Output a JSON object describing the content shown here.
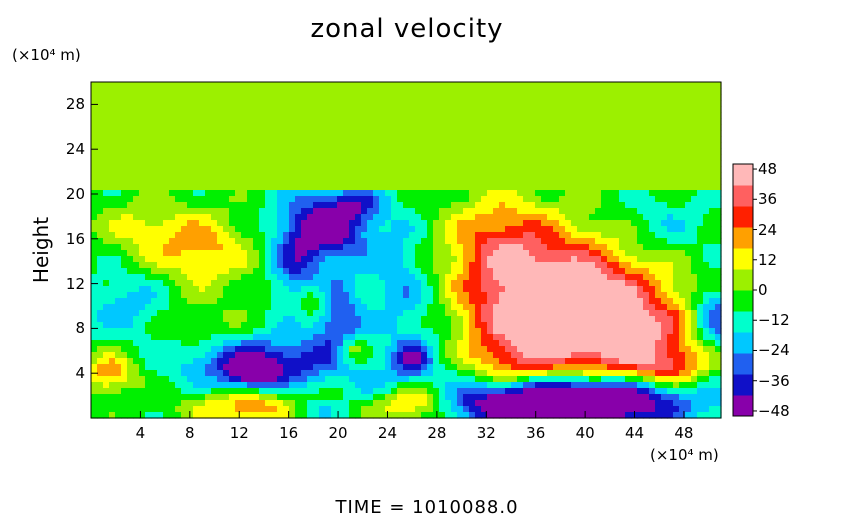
{
  "chart_data": {
    "type": "heatmap",
    "title": "zonal velocity",
    "ylabel": "Height",
    "xlabel": "",
    "x_unit_label": "(×10⁴ m)",
    "y_unit_label": "(×10⁴ m)",
    "x_ticks": [
      "4",
      "8",
      "12",
      "16",
      "20",
      "24",
      "28",
      "32",
      "36",
      "40",
      "44",
      "48"
    ],
    "y_ticks": [
      "4",
      "8",
      "12",
      "16",
      "20",
      "24",
      "28"
    ],
    "xlim": [
      0,
      51
    ],
    "ylim": [
      0,
      30
    ],
    "colorbar_ticks": [
      "48",
      "36",
      "24",
      "12",
      "0",
      "−12",
      "−24",
      "−36",
      "−48"
    ],
    "colorbar_range": [
      -50,
      50
    ],
    "colorbar_colors": [
      "#8800aa",
      "#1010c8",
      "#2060f0",
      "#00c8ff",
      "#00ffcc",
      "#00f000",
      "#9cf000",
      "#ffff00",
      "#ffa000",
      "#ff2000",
      "#ff6060",
      "#ffb8b8"
    ],
    "background_value": 0,
    "features": [
      {
        "x": 38,
        "y": 10,
        "sx": 5.5,
        "sy": 4.2,
        "value": 70
      },
      {
        "x": 44,
        "y": 7,
        "sx": 3.5,
        "sy": 2.5,
        "value": 30
      },
      {
        "x": 47,
        "y": 4.5,
        "sx": 2,
        "sy": 1.2,
        "value": 25
      },
      {
        "x": 33,
        "y": 16,
        "sx": 3,
        "sy": 3,
        "value": 25
      },
      {
        "x": 34,
        "y": 4,
        "sx": 2.5,
        "sy": 2.5,
        "value": 18
      },
      {
        "x": 38,
        "y": 1.5,
        "sx": 6.5,
        "sy": 1.5,
        "value": -85
      },
      {
        "x": 9,
        "y": 15,
        "sx": 2.8,
        "sy": 2.3,
        "value": 26
      },
      {
        "x": 4,
        "y": 17,
        "sx": 2.5,
        "sy": 1.8,
        "value": 15
      },
      {
        "x": 19,
        "y": 17,
        "sx": 2.5,
        "sy": 2.2,
        "value": -45
      },
      {
        "x": 21.5,
        "y": 19,
        "sx": 1.5,
        "sy": 1,
        "value": -20
      },
      {
        "x": 20,
        "y": 9,
        "sx": 1.4,
        "sy": 2.4,
        "value": -30
      },
      {
        "x": 25,
        "y": 12,
        "sx": 1.6,
        "sy": 4,
        "value": -18
      },
      {
        "x": 16.5,
        "y": 13,
        "sx": 1.3,
        "sy": 2.5,
        "value": -22
      },
      {
        "x": 14,
        "y": 5,
        "sx": 4.5,
        "sy": 1.6,
        "value": -38
      },
      {
        "x": 13,
        "y": 4,
        "sx": 1.3,
        "sy": 0.8,
        "value": -35
      },
      {
        "x": 26,
        "y": 5,
        "sx": 1.2,
        "sy": 1.3,
        "value": -30
      },
      {
        "x": 3,
        "y": 10,
        "sx": 2.5,
        "sy": 2,
        "value": -15
      },
      {
        "x": 1.5,
        "y": 4,
        "sx": 1.5,
        "sy": 1.2,
        "value": 30
      },
      {
        "x": 26,
        "y": 1.5,
        "sx": 2.5,
        "sy": 1.3,
        "value": 40
      },
      {
        "x": 13,
        "y": 1,
        "sx": 3.5,
        "sy": 1,
        "value": 30
      },
      {
        "x": 18,
        "y": 0.8,
        "sx": 2,
        "sy": 0.8,
        "value": -15
      },
      {
        "x": 21,
        "y": 6,
        "sx": 0.8,
        "sy": 0.8,
        "value": 25
      },
      {
        "x": 18,
        "y": 10.5,
        "sx": 1,
        "sy": 1,
        "value": 20
      },
      {
        "x": 9,
        "y": 8,
        "sx": 3,
        "sy": 1.8,
        "value": 8
      },
      {
        "x": 50.5,
        "y": 9,
        "sx": 1.2,
        "sy": 2,
        "value": -30
      },
      {
        "x": 46,
        "y": 17,
        "sx": 3,
        "sy": 2,
        "value": -12
      },
      {
        "x": 28,
        "y": 8,
        "sx": 2,
        "sy": 4,
        "value": -10
      },
      {
        "x": 23.5,
        "y": 2.5,
        "sx": 1.5,
        "sy": 1,
        "value": -15
      }
    ],
    "tropopause_height": 20.5,
    "upper_band_value": 2
  },
  "time_label": "TIME  =  1010088.0"
}
